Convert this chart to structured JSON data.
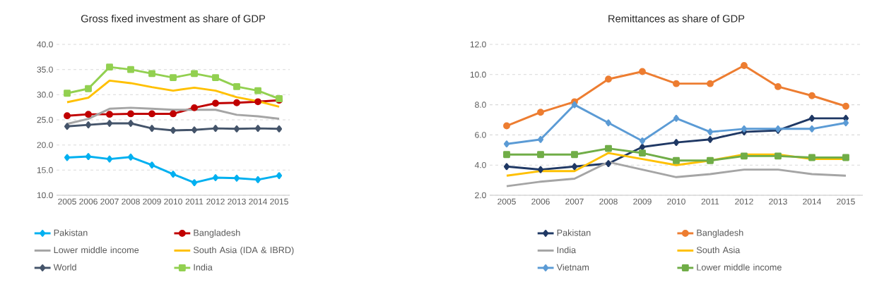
{
  "chart_data": [
    {
      "type": "line",
      "title": "Gross fixed investment as share of GDP",
      "categories": [
        "2005",
        "2006",
        "2007",
        "2008",
        "2009",
        "2010",
        "2011",
        "2012",
        "2013",
        "2014",
        "2015"
      ],
      "series": [
        {
          "name": "Pakistan",
          "color": "#00b0f0",
          "marker": "diamond",
          "values": [
            17.5,
            17.7,
            17.2,
            17.6,
            16.0,
            14.2,
            12.5,
            13.5,
            13.4,
            13.1,
            13.9
          ]
        },
        {
          "name": "Bangladesh",
          "color": "#c00000",
          "marker": "circle",
          "values": [
            25.8,
            26.1,
            26.1,
            26.2,
            26.2,
            26.2,
            27.4,
            28.3,
            28.4,
            28.6,
            28.9
          ]
        },
        {
          "name": "Lower middle income",
          "color": "#a5a5a5",
          "marker": "none",
          "values": [
            24.2,
            25.2,
            27.2,
            27.4,
            27.2,
            27.0,
            27.0,
            27.0,
            26.0,
            25.7,
            25.2
          ]
        },
        {
          "name": "South Asia (IDA & IBRD)",
          "color": "#ffc000",
          "marker": "none",
          "values": [
            28.5,
            29.4,
            32.8,
            32.3,
            31.5,
            30.8,
            31.4,
            30.8,
            29.5,
            28.7,
            27.6
          ]
        },
        {
          "name": "World",
          "color": "#44546a",
          "marker": "diamond",
          "values": [
            23.7,
            24.0,
            24.3,
            24.3,
            23.3,
            22.9,
            23.0,
            23.3,
            23.2,
            23.3,
            23.2
          ]
        },
        {
          "name": "India",
          "color": "#92d050",
          "marker": "square",
          "values": [
            30.3,
            31.2,
            35.5,
            35.0,
            34.2,
            33.4,
            34.2,
            33.4,
            31.6,
            30.8,
            29.2
          ]
        }
      ],
      "ylim": [
        10,
        40
      ],
      "yticks": [
        {
          "value": 10,
          "label": "10.0"
        },
        {
          "value": 15,
          "label": "15.0"
        },
        {
          "value": 20,
          "label": "20.0"
        },
        {
          "value": 25,
          "label": "25.0"
        },
        {
          "value": 30,
          "label": "30.0"
        },
        {
          "value": 35,
          "label": "35.0"
        },
        {
          "value": 40,
          "label": "40.0"
        }
      ],
      "grid": "y",
      "legend": "bottom"
    },
    {
      "type": "line",
      "title": "Remittances as share of GDP",
      "categories": [
        "2005",
        "2006",
        "2007",
        "2008",
        "2009",
        "2010",
        "2011",
        "2012",
        "2013",
        "2014",
        "2015"
      ],
      "series": [
        {
          "name": "Pakistan",
          "color": "#1f3864",
          "marker": "diamond",
          "values": [
            3.9,
            3.7,
            3.9,
            4.1,
            5.2,
            5.5,
            5.7,
            6.2,
            6.3,
            7.1,
            7.1
          ]
        },
        {
          "name": "Bangladesh",
          "color": "#ed7d31",
          "marker": "circle",
          "values": [
            6.6,
            7.5,
            8.2,
            9.7,
            10.2,
            9.4,
            9.4,
            10.6,
            9.2,
            8.6,
            7.9
          ]
        },
        {
          "name": "India",
          "color": "#a5a5a5",
          "marker": "none",
          "values": [
            2.6,
            2.9,
            3.1,
            4.2,
            3.7,
            3.2,
            3.4,
            3.7,
            3.7,
            3.4,
            3.3
          ]
        },
        {
          "name": "South Asia",
          "color": "#ffc000",
          "marker": "none",
          "values": [
            3.3,
            3.6,
            3.6,
            4.8,
            4.4,
            4.0,
            4.3,
            4.7,
            4.7,
            4.4,
            4.4
          ]
        },
        {
          "name": "Vietnam",
          "color": "#5b9bd5",
          "marker": "diamond",
          "values": [
            5.4,
            5.7,
            8.0,
            6.8,
            5.6,
            7.1,
            6.2,
            6.4,
            6.4,
            6.4,
            6.8
          ]
        },
        {
          "name": "Lower middle income",
          "color": "#70ad47",
          "marker": "square",
          "values": [
            4.7,
            4.7,
            4.7,
            5.1,
            4.8,
            4.3,
            4.3,
            4.6,
            4.6,
            4.5,
            4.5
          ]
        }
      ],
      "ylim": [
        2,
        12
      ],
      "yticks": [
        {
          "value": 2,
          "label": "2.0"
        },
        {
          "value": 4,
          "label": "4.0"
        },
        {
          "value": 6,
          "label": "6.0"
        },
        {
          "value": 8,
          "label": "8.0"
        },
        {
          "value": 10,
          "label": "10.0"
        },
        {
          "value": 12,
          "label": "12.0"
        }
      ],
      "grid": "y",
      "legend": "bottom"
    }
  ]
}
